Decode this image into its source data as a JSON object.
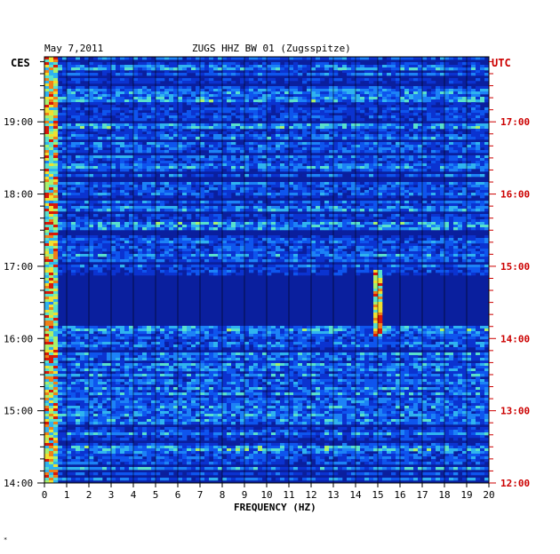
{
  "header": {
    "date": "May 7,2011",
    "title": "ZUGS HHZ BW 01 (Zugsspitze)",
    "left_timezone": "CES",
    "right_timezone": "UTC"
  },
  "footer": {
    "mark": "*"
  },
  "colors": {
    "left_axis": "#000000",
    "right_axis": "#cc0000",
    "background_noise": "#0a1f9e",
    "grid": "#000000"
  },
  "chart_data": {
    "type": "heatmap",
    "xlabel": "FREQUENCY (HZ)",
    "x_ticks": [
      "0",
      "1",
      "2",
      "3",
      "4",
      "5",
      "6",
      "7",
      "8",
      "9",
      "10",
      "11",
      "12",
      "13",
      "14",
      "15",
      "16",
      "17",
      "18",
      "19",
      "20"
    ],
    "xlim": [
      0,
      20
    ],
    "y_left_ticks": [
      "14:00",
      "15:00",
      "16:00",
      "17:00",
      "18:00",
      "19:00"
    ],
    "y_right_ticks": [
      "12:00",
      "13:00",
      "14:00",
      "15:00",
      "16:00",
      "17:00"
    ],
    "time_range_local": [
      "14:00",
      "19:54"
    ],
    "features": [
      {
        "name": "low-frequency energy",
        "freq_hz": [
          0,
          0.6
        ],
        "time": "14:00-19:54",
        "intensity": "high"
      },
      {
        "name": "quiet gap",
        "freq_hz": [
          0,
          20
        ],
        "time": "18:09-18:13",
        "intensity": "low"
      },
      {
        "name": "quiet band",
        "freq_hz": [
          0,
          20
        ],
        "time": "16:10-16:52",
        "intensity": "low"
      },
      {
        "name": "narrowband signal",
        "freq_hz": [
          14.9,
          15.2
        ],
        "time": "16:02-16:58",
        "intensity": "high"
      }
    ]
  }
}
